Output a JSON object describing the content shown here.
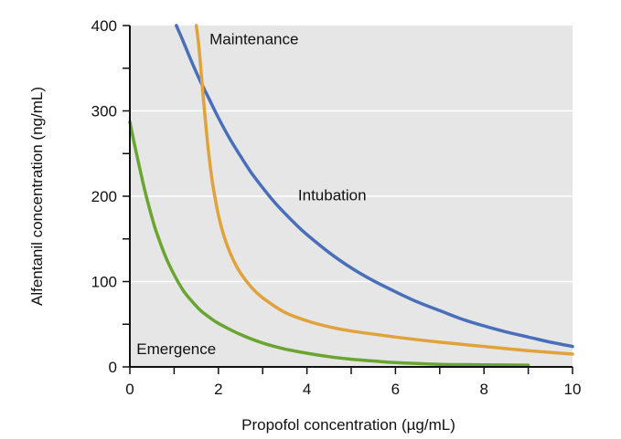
{
  "chart_data": {
    "type": "line",
    "title": "",
    "xlabel": "Propofol concentration (µg/mL)",
    "ylabel": "Alfentanil concentration (ng/mL)",
    "xlim": [
      0,
      10
    ],
    "ylim": [
      0,
      400
    ],
    "x_ticks": [
      {
        "value": 0,
        "label": "0"
      },
      {
        "value": 2,
        "label": "2"
      },
      {
        "value": 4,
        "label": "4"
      },
      {
        "value": 6,
        "label": "6"
      },
      {
        "value": 8,
        "label": "8"
      },
      {
        "value": 10,
        "label": "10"
      }
    ],
    "x_minor_ticks": [
      1,
      3,
      5,
      7,
      9
    ],
    "y_ticks": [
      {
        "value": 0,
        "label": "0"
      },
      {
        "value": 100,
        "label": "100"
      },
      {
        "value": 200,
        "label": "200"
      },
      {
        "value": 300,
        "label": "300"
      },
      {
        "value": 400,
        "label": "400"
      }
    ],
    "y_minor_ticks": [
      50,
      150,
      250,
      350
    ],
    "grid": "horizontal",
    "legend": "none",
    "colors": {
      "plot_background": "#e6e6e6",
      "grid": "#ffffff",
      "axis": "#111111"
    },
    "series": [
      {
        "color": "#4a6fba",
        "points": [
          [
            1.05,
            400
          ],
          [
            1.2,
            382
          ],
          [
            1.4,
            357
          ],
          [
            1.6,
            334
          ],
          [
            1.8,
            313
          ],
          [
            2.0,
            292
          ],
          [
            2.25,
            268
          ],
          [
            2.5,
            247
          ],
          [
            2.75,
            227
          ],
          [
            3.0,
            210
          ],
          [
            3.25,
            194
          ],
          [
            3.5,
            180
          ],
          [
            3.75,
            167
          ],
          [
            4.0,
            155
          ],
          [
            4.5,
            134
          ],
          [
            5.0,
            116
          ],
          [
            5.5,
            101
          ],
          [
            6.0,
            88
          ],
          [
            6.5,
            76
          ],
          [
            7.0,
            66
          ],
          [
            7.5,
            56
          ],
          [
            8.0,
            48
          ],
          [
            8.5,
            41
          ],
          [
            9.0,
            35
          ],
          [
            9.5,
            29
          ],
          [
            10.0,
            24
          ]
        ]
      },
      {
        "color": "#e0a23a",
        "points": [
          [
            1.5,
            400
          ],
          [
            1.55,
            380
          ],
          [
            1.6,
            352
          ],
          [
            1.65,
            320
          ],
          [
            1.7,
            292
          ],
          [
            1.75,
            265
          ],
          [
            1.8,
            242
          ],
          [
            1.85,
            222
          ],
          [
            1.9,
            205
          ],
          [
            2.0,
            178
          ],
          [
            2.1,
            158
          ],
          [
            2.2,
            142
          ],
          [
            2.35,
            124
          ],
          [
            2.5,
            110
          ],
          [
            2.75,
            93
          ],
          [
            3.0,
            81
          ],
          [
            3.5,
            64
          ],
          [
            4.0,
            54
          ],
          [
            4.5,
            47
          ],
          [
            5.0,
            42
          ],
          [
            6.0,
            35
          ],
          [
            7.0,
            29
          ],
          [
            8.0,
            24
          ],
          [
            9.0,
            19
          ],
          [
            10.0,
            15
          ]
        ]
      },
      {
        "color": "#6aa431",
        "points": [
          [
            0.0,
            287
          ],
          [
            0.1,
            262
          ],
          [
            0.2,
            238
          ],
          [
            0.3,
            215
          ],
          [
            0.4,
            194
          ],
          [
            0.5,
            175
          ],
          [
            0.6,
            158
          ],
          [
            0.8,
            130
          ],
          [
            1.0,
            108
          ],
          [
            1.2,
            90
          ],
          [
            1.4,
            77
          ],
          [
            1.6,
            66
          ],
          [
            1.8,
            58
          ],
          [
            2.0,
            51
          ],
          [
            2.5,
            38
          ],
          [
            3.0,
            28
          ],
          [
            3.5,
            21
          ],
          [
            4.0,
            16
          ],
          [
            4.5,
            12
          ],
          [
            5.0,
            9
          ],
          [
            5.5,
            7
          ],
          [
            6.0,
            5
          ],
          [
            7.0,
            3
          ],
          [
            8.0,
            2.5
          ],
          [
            9.0,
            2
          ]
        ]
      }
    ],
    "annotations": [
      {
        "text": "Maintenance",
        "x": 1.8,
        "y": 378
      },
      {
        "text": "Intubation",
        "x": 3.8,
        "y": 195
      },
      {
        "text": "Emergence",
        "x": 0.15,
        "y": 15
      }
    ]
  }
}
